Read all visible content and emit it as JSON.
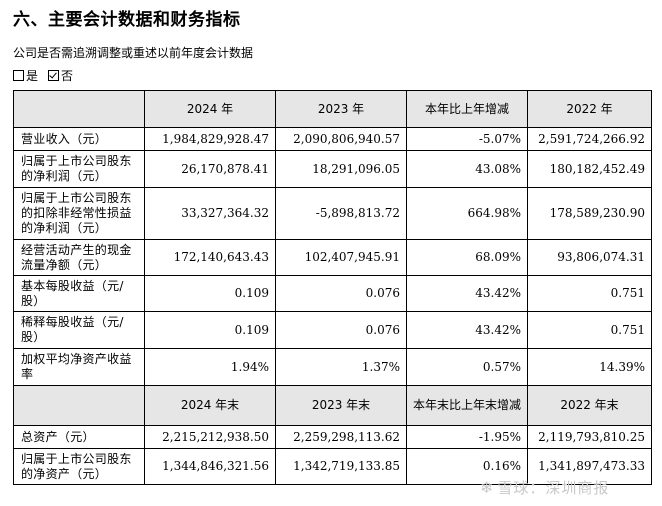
{
  "title": "六、主要会计数据和财务指标",
  "note": "公司是否需追溯调整或重述以前年度会计数据",
  "choices": [
    {
      "label": "是",
      "checked": false
    },
    {
      "label": "否",
      "checked": true
    }
  ],
  "header1": [
    "",
    "2024 年",
    "2023 年",
    "本年比上年增减",
    "2022 年"
  ],
  "rows1": [
    {
      "label": "营业收入（元）",
      "values": [
        "1,984,829,928.47",
        "2,090,806,940.57",
        "-5.07%",
        "2,591,724,266.92"
      ]
    },
    {
      "label": "归属于上市公司股东的净利润（元）",
      "values": [
        "26,170,878.41",
        "18,291,096.05",
        "43.08%",
        "180,182,452.49"
      ]
    },
    {
      "label": "归属于上市公司股东的扣除非经常性损益的净利润（元）",
      "values": [
        "33,327,364.32",
        "-5,898,813.72",
        "664.98%",
        "178,589,230.90"
      ]
    },
    {
      "label": "经营活动产生的现金流量净额（元）",
      "values": [
        "172,140,643.43",
        "102,407,945.91",
        "68.09%",
        "93,806,074.31"
      ]
    },
    {
      "label": "基本每股收益（元/股）",
      "values": [
        "0.109",
        "0.076",
        "43.42%",
        "0.751"
      ]
    },
    {
      "label": "稀释每股收益（元/股）",
      "values": [
        "0.109",
        "0.076",
        "43.42%",
        "0.751"
      ]
    },
    {
      "label": "加权平均净资产收益率",
      "values": [
        "1.94%",
        "1.37%",
        "0.57%",
        "14.39%"
      ]
    }
  ],
  "header2": [
    "",
    "2024 年末",
    "2023 年末",
    "本年末比上年末增减",
    "2022 年末"
  ],
  "rows2": [
    {
      "label": "总资产（元）",
      "values": [
        "2,215,212,938.50",
        "2,259,298,113.62",
        "-1.95%",
        "2,119,793,810.25"
      ]
    },
    {
      "label": "归属于上市公司股东的净资产（元）",
      "values": [
        "1,344,846,321.56",
        "1,342,719,133.85",
        "0.16%",
        "1,341,897,473.33"
      ]
    }
  ],
  "watermark": "雪球：深圳商报"
}
